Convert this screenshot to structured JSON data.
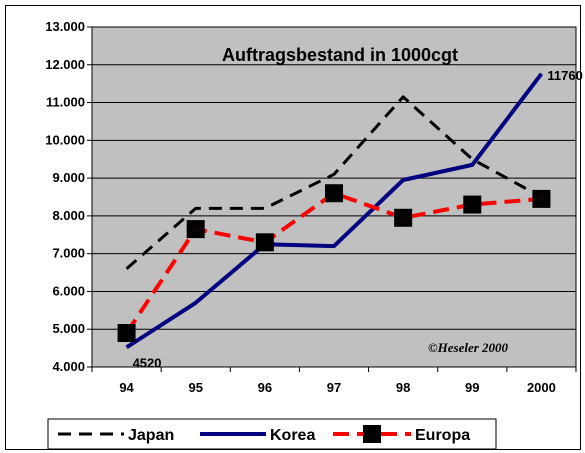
{
  "chart_data": {
    "type": "line",
    "title": "Auftragsbestand in 1000cgt",
    "categories": [
      "94",
      "95",
      "96",
      "97",
      "98",
      "99",
      "2000"
    ],
    "ylim": [
      4000,
      13000
    ],
    "yticks": [
      "4.000",
      "5.000",
      "6.000",
      "7.000",
      "8.000",
      "9.000",
      "10.000",
      "11.000",
      "12.000",
      "13.000"
    ],
    "grid": true,
    "legend_position": "bottom",
    "series": [
      {
        "name": "Japan",
        "values": [
          6600,
          8200,
          8200,
          9100,
          11150,
          9500,
          8500
        ],
        "color": "#000000",
        "style": "dashed"
      },
      {
        "name": "Korea",
        "values": [
          4520,
          5700,
          7250,
          7200,
          8950,
          9350,
          11760
        ],
        "color": "#000080",
        "style": "solid"
      },
      {
        "name": "Europa",
        "values": [
          4900,
          7650,
          7300,
          8600,
          7950,
          8300,
          8450
        ],
        "color": "#ff0000",
        "style": "dashed-square-markers"
      }
    ],
    "data_labels": [
      {
        "series": "Korea",
        "category": "94",
        "text": "4520"
      },
      {
        "series": "Korea",
        "category": "2000",
        "text": "11760"
      }
    ],
    "annotation": "©Heseler 2000"
  }
}
